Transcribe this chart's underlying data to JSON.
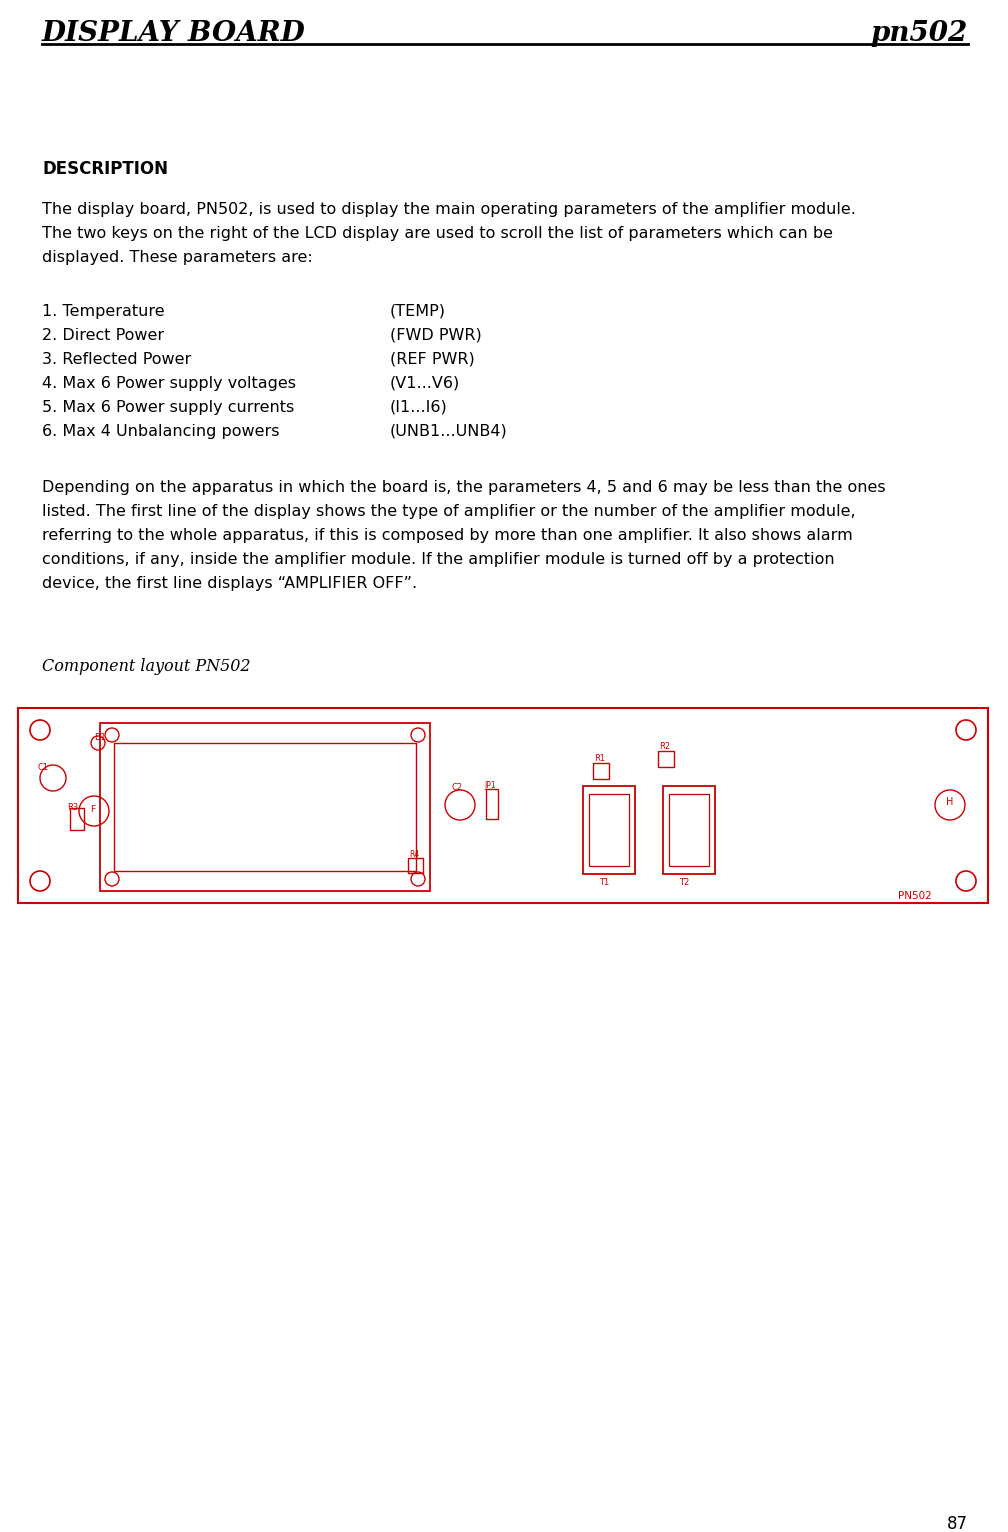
{
  "header_left": "DISPLAY BOARD",
  "header_right": "pn502",
  "header_font_size": 20,
  "section_title": "DESCRIPTION",
  "section_title_font_size": 12,
  "body_font_size": 11.5,
  "para1_lines": [
    "The display board, PN502, is used to display the main operating parameters of the amplifier module.",
    "The two keys on the right of the LCD display are used to scroll the list of parameters which can be",
    "displayed. These parameters are:"
  ],
  "params_left": [
    "1. Temperature",
    "2. Direct Power",
    "3. Reflected Power",
    "4. Max 6 Power supply voltages",
    "5. Max 6 Power supply currents",
    "6. Max 4 Unbalancing powers"
  ],
  "params_right": [
    "(TEMP)",
    "(FWD PWR)",
    "(REF PWR)",
    "(V1...V6)",
    "(I1...I6)",
    "(UNB1...UNB4)"
  ],
  "para2_lines": [
    "Depending on the apparatus in which the board is, the parameters 4, 5 and 6 may be less than the ones",
    "listed. The first line of the display shows the type of amplifier or the number of the amplifier module,",
    "referring to the whole apparatus, if this is composed by more than one amplifier. It also shows alarm",
    "conditions, if any, inside the amplifier module. If the amplifier module is turned off by a protection",
    "device, the first line displays “AMPLIFIER OFF”."
  ],
  "layout_caption": "Component layout PN502",
  "page_number": "87",
  "red_color": "#cc0000",
  "bg_color": "#ffffff",
  "text_color": "#000000"
}
